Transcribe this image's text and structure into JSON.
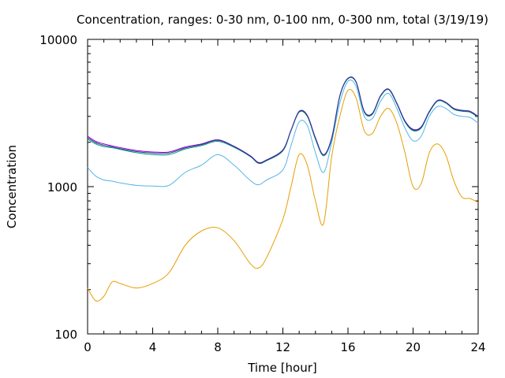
{
  "chart_data": {
    "type": "line",
    "title": "Concentration, ranges: 0-30 nm, 0-100 nm, 0-300 nm, total (3/19/19)",
    "xlabel": "Time [hour]",
    "ylabel": "Concentration",
    "xlim": [
      0,
      24
    ],
    "ylim": [
      100,
      10000
    ],
    "yscale": "log",
    "grid": false,
    "x_ticks": [
      "0",
      "4",
      "8",
      "12",
      "16",
      "20",
      "24"
    ],
    "y_ticks": [
      "100",
      "1000",
      "10000"
    ],
    "x_tick_values": [
      0,
      4,
      8,
      12,
      16,
      20,
      24
    ],
    "y_tick_values": [
      100,
      1000,
      10000
    ],
    "x": [
      0,
      0.5,
      1,
      1.5,
      2,
      3,
      4,
      5,
      6,
      7,
      8,
      9,
      10,
      10.5,
      11,
      12,
      12.5,
      13,
      13.5,
      14,
      14.5,
      15,
      15.5,
      16,
      16.5,
      17,
      17.5,
      18,
      18.5,
      19,
      19.5,
      20,
      20.5,
      21,
      21.5,
      22,
      22.5,
      23,
      23.5,
      24
    ],
    "series": [
      {
        "color": "#e69f00",
        "values": [
          205,
          168,
          180,
          225,
          220,
          205,
          220,
          260,
          400,
          500,
          525,
          430,
          300,
          280,
          330,
          600,
          1000,
          1650,
          1400,
          800,
          560,
          1600,
          3000,
          4500,
          4000,
          2400,
          2300,
          3000,
          3400,
          2700,
          1700,
          1000,
          1050,
          1700,
          1950,
          1650,
          1100,
          850,
          830,
          780
        ]
      },
      {
        "color": "#56b4e9",
        "values": [
          1350,
          1180,
          1110,
          1090,
          1060,
          1020,
          1010,
          1020,
          1250,
          1400,
          1650,
          1400,
          1100,
          1030,
          1110,
          1300,
          1900,
          2750,
          2600,
          1700,
          1250,
          2000,
          3700,
          5200,
          4800,
          3000,
          2900,
          3800,
          4300,
          3400,
          2500,
          2050,
          2200,
          3000,
          3500,
          3400,
          3100,
          3000,
          2950,
          2700
        ]
      },
      {
        "color": "#009e73",
        "values": [
          2100,
          1950,
          1870,
          1840,
          1790,
          1700,
          1650,
          1650,
          1800,
          1900,
          2030,
          1850,
          1600,
          1440,
          1500,
          1750,
          2400,
          3200,
          3000,
          2100,
          1620,
          2100,
          4100,
          5400,
          5100,
          3200,
          3100,
          4100,
          4550,
          3650,
          2750,
          2400,
          2500,
          3200,
          3800,
          3700,
          3350,
          3250,
          3200,
          2950
        ]
      },
      {
        "color": "#9400d3",
        "values": [
          2200,
          2030,
          1950,
          1890,
          1840,
          1760,
          1720,
          1720,
          1860,
          1950,
          2080,
          1880,
          1620,
          1460,
          1520,
          1780,
          2420,
          3250,
          3050,
          2150,
          1650,
          2150,
          4150,
          5450,
          5150,
          3250,
          3150,
          4150,
          4600,
          3700,
          2800,
          2450,
          2550,
          3250,
          3850,
          3750,
          3400,
          3300,
          3250,
          3000
        ]
      },
      {
        "color": "#1f3f8f",
        "values": [
          2150,
          1990,
          1910,
          1860,
          1810,
          1730,
          1690,
          1690,
          1830,
          1930,
          2060,
          1870,
          1610,
          1450,
          1510,
          1770,
          2410,
          3230,
          3030,
          2130,
          1640,
          2130,
          4130,
          5430,
          5130,
          3230,
          3130,
          4130,
          4580,
          3680,
          2780,
          2430,
          2530,
          3230,
          3830,
          3730,
          3380,
          3280,
          3230,
          2980
        ]
      }
    ]
  }
}
